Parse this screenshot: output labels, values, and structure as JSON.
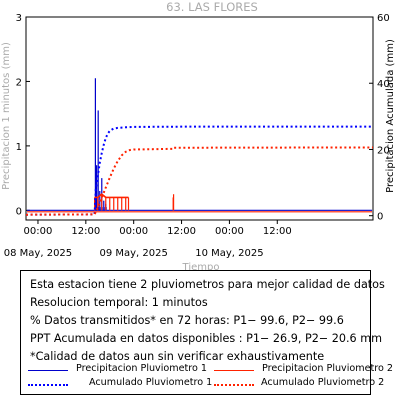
{
  "chart_data": {
    "type": "line",
    "title": "63. LAS FLORES",
    "xlabel": "Tiempo",
    "ylabel_left": "Precipitacion 1 minutos (mm)",
    "ylabel_right": "Precipitacion Acumulada (mm)",
    "x_axis": {
      "unit": "hours since 08 May 2025 00:00 (local)",
      "range": [
        -3,
        84
      ],
      "time_ticks": [
        {
          "hour": 0,
          "label": "00:00"
        },
        {
          "hour": 12,
          "label": "12:00"
        },
        {
          "hour": 24,
          "label": "00:00"
        },
        {
          "hour": 36,
          "label": "12:00"
        },
        {
          "hour": 48,
          "label": "00:00"
        },
        {
          "hour": 60,
          "label": "12:00"
        }
      ],
      "date_labels": [
        {
          "hour": 0,
          "label": "08 May, 2025"
        },
        {
          "hour": 24,
          "label": "09 May, 2025"
        },
        {
          "hour": 48,
          "label": "10 May, 2025"
        }
      ]
    },
    "y_left": {
      "range": [
        -0.15,
        3.0
      ],
      "ticks": [
        0,
        1,
        2,
        3
      ]
    },
    "y_right": {
      "range": [
        -1.3,
        60
      ],
      "ticks": [
        0,
        20,
        40,
        60
      ]
    },
    "grid": false,
    "series": [
      {
        "name": "Precipitacion Pluviometro 1",
        "axis": "left",
        "style": "solid",
        "color": "#0000cc",
        "points": [
          [
            14.3,
            0.05
          ],
          [
            14.4,
            2.05
          ],
          [
            14.5,
            0.05
          ],
          [
            14.7,
            0.7
          ],
          [
            14.8,
            0.05
          ],
          [
            15.1,
            1.55
          ],
          [
            15.2,
            0.05
          ],
          [
            15.5,
            0.3
          ],
          [
            15.6,
            0.05
          ],
          [
            16.0,
            0.5
          ],
          [
            16.1,
            0.05
          ],
          [
            16.5,
            0.15
          ],
          [
            16.6,
            0.05
          ],
          [
            17.0,
            0.1
          ],
          [
            17.1,
            0.05
          ]
        ]
      },
      {
        "name": "Precipitacion Pluviometro 2",
        "axis": "left",
        "style": "solid",
        "color": "#ff2200",
        "points": [
          [
            14.2,
            0.2
          ],
          [
            15.0,
            0.2
          ],
          [
            16.0,
            0.25
          ],
          [
            17.0,
            0.2
          ],
          [
            18.0,
            0.2
          ],
          [
            19.0,
            0.2
          ],
          [
            20.0,
            0.2
          ],
          [
            21.0,
            0.2
          ],
          [
            22.0,
            0.2
          ],
          [
            22.7,
            0.2
          ],
          [
            33.9,
            0.2
          ],
          [
            34.0,
            0.25
          ]
        ]
      },
      {
        "name": "Acumulado Pluviometro 1",
        "axis": "right",
        "style": "dotted",
        "color": "#0000ff",
        "points": [
          [
            -3,
            0.3
          ],
          [
            14.2,
            0.4
          ],
          [
            14.5,
            8
          ],
          [
            15.0,
            12
          ],
          [
            15.5,
            16
          ],
          [
            16.0,
            19
          ],
          [
            16.5,
            21.5
          ],
          [
            17.0,
            23.5
          ],
          [
            17.5,
            24.8
          ],
          [
            18.0,
            25.6
          ],
          [
            18.5,
            26.0
          ],
          [
            19.0,
            26.3
          ],
          [
            20.0,
            26.5
          ],
          [
            21.0,
            26.6
          ],
          [
            22.0,
            26.7
          ],
          [
            24.0,
            26.8
          ],
          [
            40.0,
            26.9
          ],
          [
            84.0,
            26.9
          ]
        ]
      },
      {
        "name": "Acumulado Pluviometro 2",
        "axis": "right",
        "style": "dotted",
        "color": "#ff2200",
        "points": [
          [
            -3,
            0.3
          ],
          [
            14.2,
            0.4
          ],
          [
            15.0,
            2.5
          ],
          [
            16.0,
            5.5
          ],
          [
            17.0,
            8.5
          ],
          [
            18.0,
            11.5
          ],
          [
            19.0,
            14.2
          ],
          [
            20.0,
            16.5
          ],
          [
            21.0,
            18.2
          ],
          [
            22.0,
            19.3
          ],
          [
            23.0,
            19.8
          ],
          [
            24.0,
            20.0
          ],
          [
            30.0,
            20.1
          ],
          [
            33.9,
            20.2
          ],
          [
            34.0,
            20.5
          ],
          [
            50.0,
            20.55
          ],
          [
            84.0,
            20.6
          ]
        ]
      }
    ]
  },
  "info": {
    "lines": [
      "Esta estacion tiene 2 pluviometros para mejor calidad de datos",
      "Resolucion temporal: 1 minutos",
      "% Datos transmitidos* en 72 horas: P1− 99.6, P2− 99.6",
      "PPT Acumulada en datos disponibles : P1− 26.9, P2− 20.6 mm",
      "*Calidad de datos aun sin verificar exhaustivamente"
    ],
    "legend": [
      {
        "label": "Precipitacion Pluviometro 1",
        "color": "#0000cc",
        "style": "solid"
      },
      {
        "label": "Precipitacion Pluviometro 2",
        "color": "#ff2200",
        "style": "solid"
      },
      {
        "label": "Acumulado Pluviometro 1",
        "color": "#0000ff",
        "style": "dotted"
      },
      {
        "label": "Acumulado Pluviometro 2",
        "color": "#ff2200",
        "style": "dotted"
      }
    ]
  }
}
